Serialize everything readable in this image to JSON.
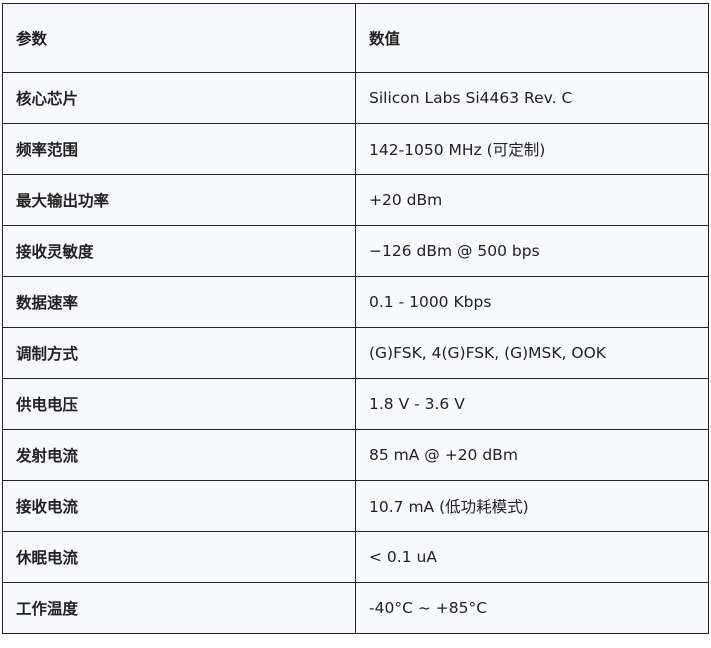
{
  "table": {
    "headers": [
      "参数",
      "数值"
    ],
    "rows": [
      [
        "核心芯片",
        "Silicon Labs Si4463 Rev. C"
      ],
      [
        "频率范围",
        "142-1050 MHz (可定制)"
      ],
      [
        "最大输出功率",
        "+20 dBm"
      ],
      [
        "接收灵敏度",
        "−126 dBm @ 500 bps"
      ],
      [
        "数据速率",
        "0.1 - 1000 Kbps"
      ],
      [
        "调制方式",
        "(G)FSK, 4(G)FSK, (G)MSK, OOK"
      ],
      [
        "供电电压",
        "1.8 V - 3.6 V"
      ],
      [
        "发射电流",
        "85 mA @ +20 dBm"
      ],
      [
        "接收电流",
        "10.7 mA (低功耗模式)"
      ],
      [
        "休眠电流",
        "< 0.1 uA"
      ],
      [
        "工作温度",
        "-40°C ~ +85°C"
      ]
    ]
  }
}
